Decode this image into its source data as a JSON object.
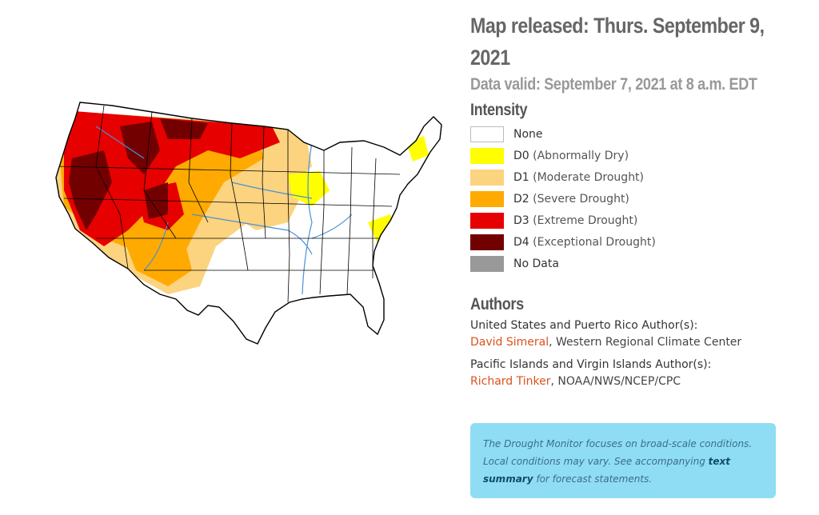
{
  "header": {
    "map_released": "Map released: Thurs. September 9, 2021",
    "data_valid": "Data valid: September 7, 2021 at 8 a.m. EDT"
  },
  "legend": {
    "title": "Intensity",
    "items": [
      {
        "code": "None",
        "desc": "",
        "color": "#ffffff"
      },
      {
        "code": "D0",
        "desc": "(Abnormally Dry)",
        "color": "#ffff00"
      },
      {
        "code": "D1",
        "desc": "(Moderate Drought)",
        "color": "#fcd37f"
      },
      {
        "code": "D2",
        "desc": "(Severe Drought)",
        "color": "#ffaa00"
      },
      {
        "code": "D3",
        "desc": "(Extreme Drought)",
        "color": "#e60000"
      },
      {
        "code": "D4",
        "desc": "(Exceptional Drought)",
        "color": "#730000"
      },
      {
        "code": "No Data",
        "desc": "",
        "color": "#999999"
      }
    ]
  },
  "authors": {
    "title": "Authors",
    "us_pr_label": "United States and Puerto Rico Author(s):",
    "us_pr_name": "David Simeral",
    "us_pr_org": ", Western Regional Climate Center",
    "pi_vi_label": "Pacific Islands and Virgin Islands Author(s):",
    "pi_vi_name": "Richard Tinker",
    "pi_vi_org": ", NOAA/NWS/NCEP/CPC"
  },
  "note": {
    "text_before": "The Drought Monitor focuses on broad-scale conditions. Local conditions may vary. See accompanying ",
    "link": "text summary",
    "text_after": " for forecast statements."
  },
  "map": {
    "name": "US Drought Monitor map of contiguous United States",
    "colors": {
      "d0": "#ffff00",
      "d1": "#fcd37f",
      "d2": "#ffaa00",
      "d3": "#e60000",
      "d4": "#730000",
      "rivers": "#4a90d9",
      "borders": "#000000"
    }
  }
}
